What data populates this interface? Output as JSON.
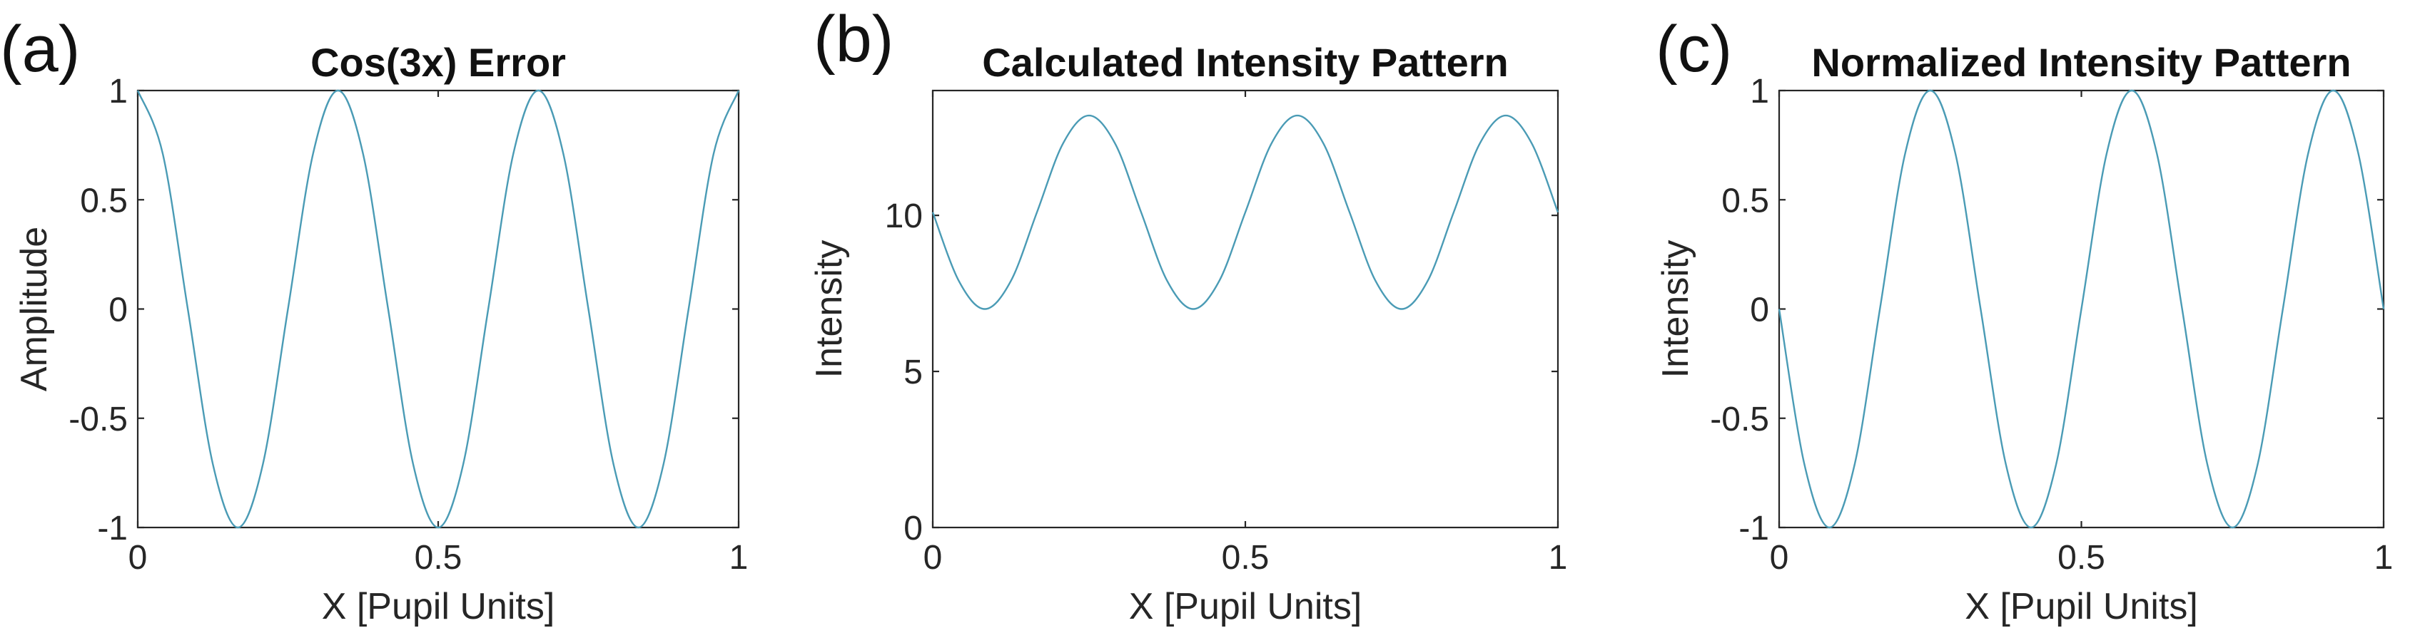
{
  "figure": {
    "panels": [
      {
        "letter": "(a)"
      },
      {
        "letter": "(b)"
      },
      {
        "letter": "(c)"
      }
    ]
  },
  "chart_data": [
    {
      "type": "line",
      "title": "Cos(3x) Error",
      "xlabel": "X [Pupil Units]",
      "ylabel": "Amplitude",
      "xlim": [
        0,
        1
      ],
      "ylim": [
        -1,
        1
      ],
      "xticks": [
        0,
        0.5,
        1
      ],
      "xtick_labels": [
        "0",
        "0.5",
        "1"
      ],
      "yticks": [
        -1,
        -0.5,
        0,
        0.5,
        1
      ],
      "ytick_labels": [
        "-1",
        "-0.5",
        "0",
        "0.5",
        "1"
      ],
      "grid": false,
      "series": [
        {
          "color": "#4a9bb5",
          "x": [
            0,
            0.0417,
            0.0833,
            0.125,
            0.1667,
            0.2083,
            0.25,
            0.2917,
            0.3333,
            0.375,
            0.4167,
            0.4583,
            0.5,
            0.5417,
            0.5833,
            0.625,
            0.6667,
            0.7083,
            0.75,
            0.7917,
            0.8333,
            0.875,
            0.9167,
            0.9583,
            1
          ],
          "y": [
            1,
            0.71,
            0,
            -0.71,
            -1,
            -0.71,
            0,
            0.71,
            1,
            0.71,
            0,
            -0.71,
            -1,
            -0.71,
            0,
            0.71,
            1,
            0.71,
            0,
            -0.71,
            -1,
            -0.71,
            0,
            0.71,
            1
          ]
        }
      ]
    },
    {
      "type": "line",
      "title": "Calculated Intensity Pattern",
      "xlabel": "X [Pupil Units]",
      "ylabel": "Intensity",
      "xlim": [
        0,
        1
      ],
      "ylim": [
        0,
        14
      ],
      "xticks": [
        0,
        0.5,
        1
      ],
      "xtick_labels": [
        "0",
        "0.5",
        "1"
      ],
      "yticks": [
        0,
        5,
        10
      ],
      "ytick_labels": [
        "0",
        "5",
        "10"
      ],
      "grid": false,
      "series": [
        {
          "color": "#4a9bb5",
          "x": [
            0,
            0.0417,
            0.0833,
            0.125,
            0.1667,
            0.2083,
            0.25,
            0.2917,
            0.3333,
            0.375,
            0.4167,
            0.4583,
            0.5,
            0.5417,
            0.5833,
            0.625,
            0.6667,
            0.7083,
            0.75,
            0.7917,
            0.8333,
            0.875,
            0.9167,
            0.9583,
            1
          ],
          "y": [
            10.1,
            7.9,
            7.0,
            7.9,
            10.1,
            12.3,
            13.2,
            12.3,
            10.1,
            7.9,
            7.0,
            7.9,
            10.1,
            12.3,
            13.2,
            12.3,
            10.1,
            7.9,
            7.0,
            7.9,
            10.1,
            12.3,
            13.2,
            12.3,
            10.1
          ]
        }
      ]
    },
    {
      "type": "line",
      "title": "Normalized Intensity Pattern",
      "xlabel": "X [Pupil Units]",
      "ylabel": "Intensity",
      "xlim": [
        0,
        1
      ],
      "ylim": [
        -1,
        1
      ],
      "xticks": [
        0,
        0.5,
        1
      ],
      "xtick_labels": [
        "0",
        "0.5",
        "1"
      ],
      "yticks": [
        -1,
        -0.5,
        0,
        0.5,
        1
      ],
      "ytick_labels": [
        "-1",
        "-0.5",
        "0",
        "0.5",
        "1"
      ],
      "grid": false,
      "series": [
        {
          "color": "#4a9bb5",
          "x": [
            0,
            0.0417,
            0.0833,
            0.125,
            0.1667,
            0.2083,
            0.25,
            0.2917,
            0.3333,
            0.375,
            0.4167,
            0.4583,
            0.5,
            0.5417,
            0.5833,
            0.625,
            0.6667,
            0.7083,
            0.75,
            0.7917,
            0.8333,
            0.875,
            0.9167,
            0.9583,
            1
          ],
          "y": [
            0,
            -0.71,
            -1,
            -0.71,
            0,
            0.71,
            1,
            0.71,
            0,
            -0.71,
            -1,
            -0.71,
            0,
            0.71,
            1,
            0.71,
            0,
            -0.71,
            -1,
            -0.71,
            0,
            0.71,
            1,
            0.71,
            0
          ]
        }
      ]
    }
  ]
}
